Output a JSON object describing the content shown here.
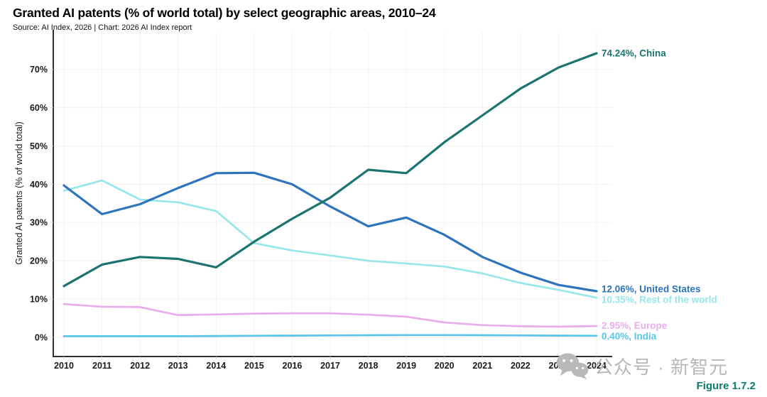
{
  "header": {
    "title": "Granted AI patents (% of world total) by select geographic areas, 2010–24",
    "source": "Source: AI Index, 2026 | Chart: 2026 AI Index report"
  },
  "figure_label": "Figure 1.7.2",
  "watermark": "公众号 · 新智元",
  "icons": {
    "wechat": "wechat-icon"
  },
  "chart_data": {
    "type": "line",
    "title": "Granted AI patents (% of world total) by select geographic areas, 2010–24",
    "xlabel": "",
    "ylabel": "Granted AI patents (% of world total)",
    "x": [
      "2010",
      "2011",
      "2012",
      "2013",
      "2014",
      "2015",
      "2016",
      "2017",
      "2018",
      "2019",
      "2020",
      "2021",
      "2022",
      "2023",
      "2024"
    ],
    "yticks": [
      0,
      10,
      20,
      30,
      40,
      50,
      60,
      70
    ],
    "ytick_labels": [
      "0%",
      "10%",
      "20%",
      "30%",
      "40%",
      "50%",
      "60%",
      "70%"
    ],
    "ylim": [
      0,
      80
    ],
    "grid": true,
    "legend_position": "right-end-of-line",
    "axis_color": "#2e2e2e",
    "grid_color": "#f6f0ef",
    "tick_label_color": "#1b1b1b",
    "series": [
      {
        "name": "India",
        "color": "#58c5e9",
        "end_label": "0.40%, India",
        "values": [
          0.3,
          0.3,
          0.3,
          0.3,
          0.35,
          0.4,
          0.45,
          0.5,
          0.55,
          0.6,
          0.6,
          0.55,
          0.5,
          0.45,
          0.4
        ]
      },
      {
        "name": "Europe",
        "color": "#e9adeb",
        "end_label": "2.95%, Europe",
        "values": [
          8.7,
          8.0,
          7.9,
          5.8,
          6.0,
          6.2,
          6.3,
          6.3,
          5.9,
          5.4,
          3.9,
          3.2,
          2.9,
          2.8,
          2.95
        ]
      },
      {
        "name": "Rest of the world",
        "color": "#97e7e9",
        "end_label": "10.35%, Rest of the world",
        "values": [
          38.3,
          41.0,
          36.0,
          35.3,
          33.0,
          24.6,
          22.7,
          21.4,
          20.0,
          19.3,
          18.5,
          16.7,
          14.2,
          12.4,
          10.35
        ]
      },
      {
        "name": "United States",
        "color": "#2d74bd",
        "end_label": "12.06%, United States",
        "values": [
          39.7,
          32.2,
          34.8,
          39.0,
          42.9,
          43.0,
          40.0,
          34.2,
          29.0,
          31.3,
          26.8,
          21.0,
          16.9,
          13.7,
          12.06
        ]
      },
      {
        "name": "China",
        "color": "#1b7470",
        "end_label": "74.24%, China",
        "values": [
          13.4,
          19.0,
          21.0,
          20.5,
          18.3,
          25.0,
          31.0,
          36.5,
          43.8,
          42.9,
          51.0,
          58.0,
          65.0,
          70.5,
          74.24
        ]
      }
    ]
  }
}
